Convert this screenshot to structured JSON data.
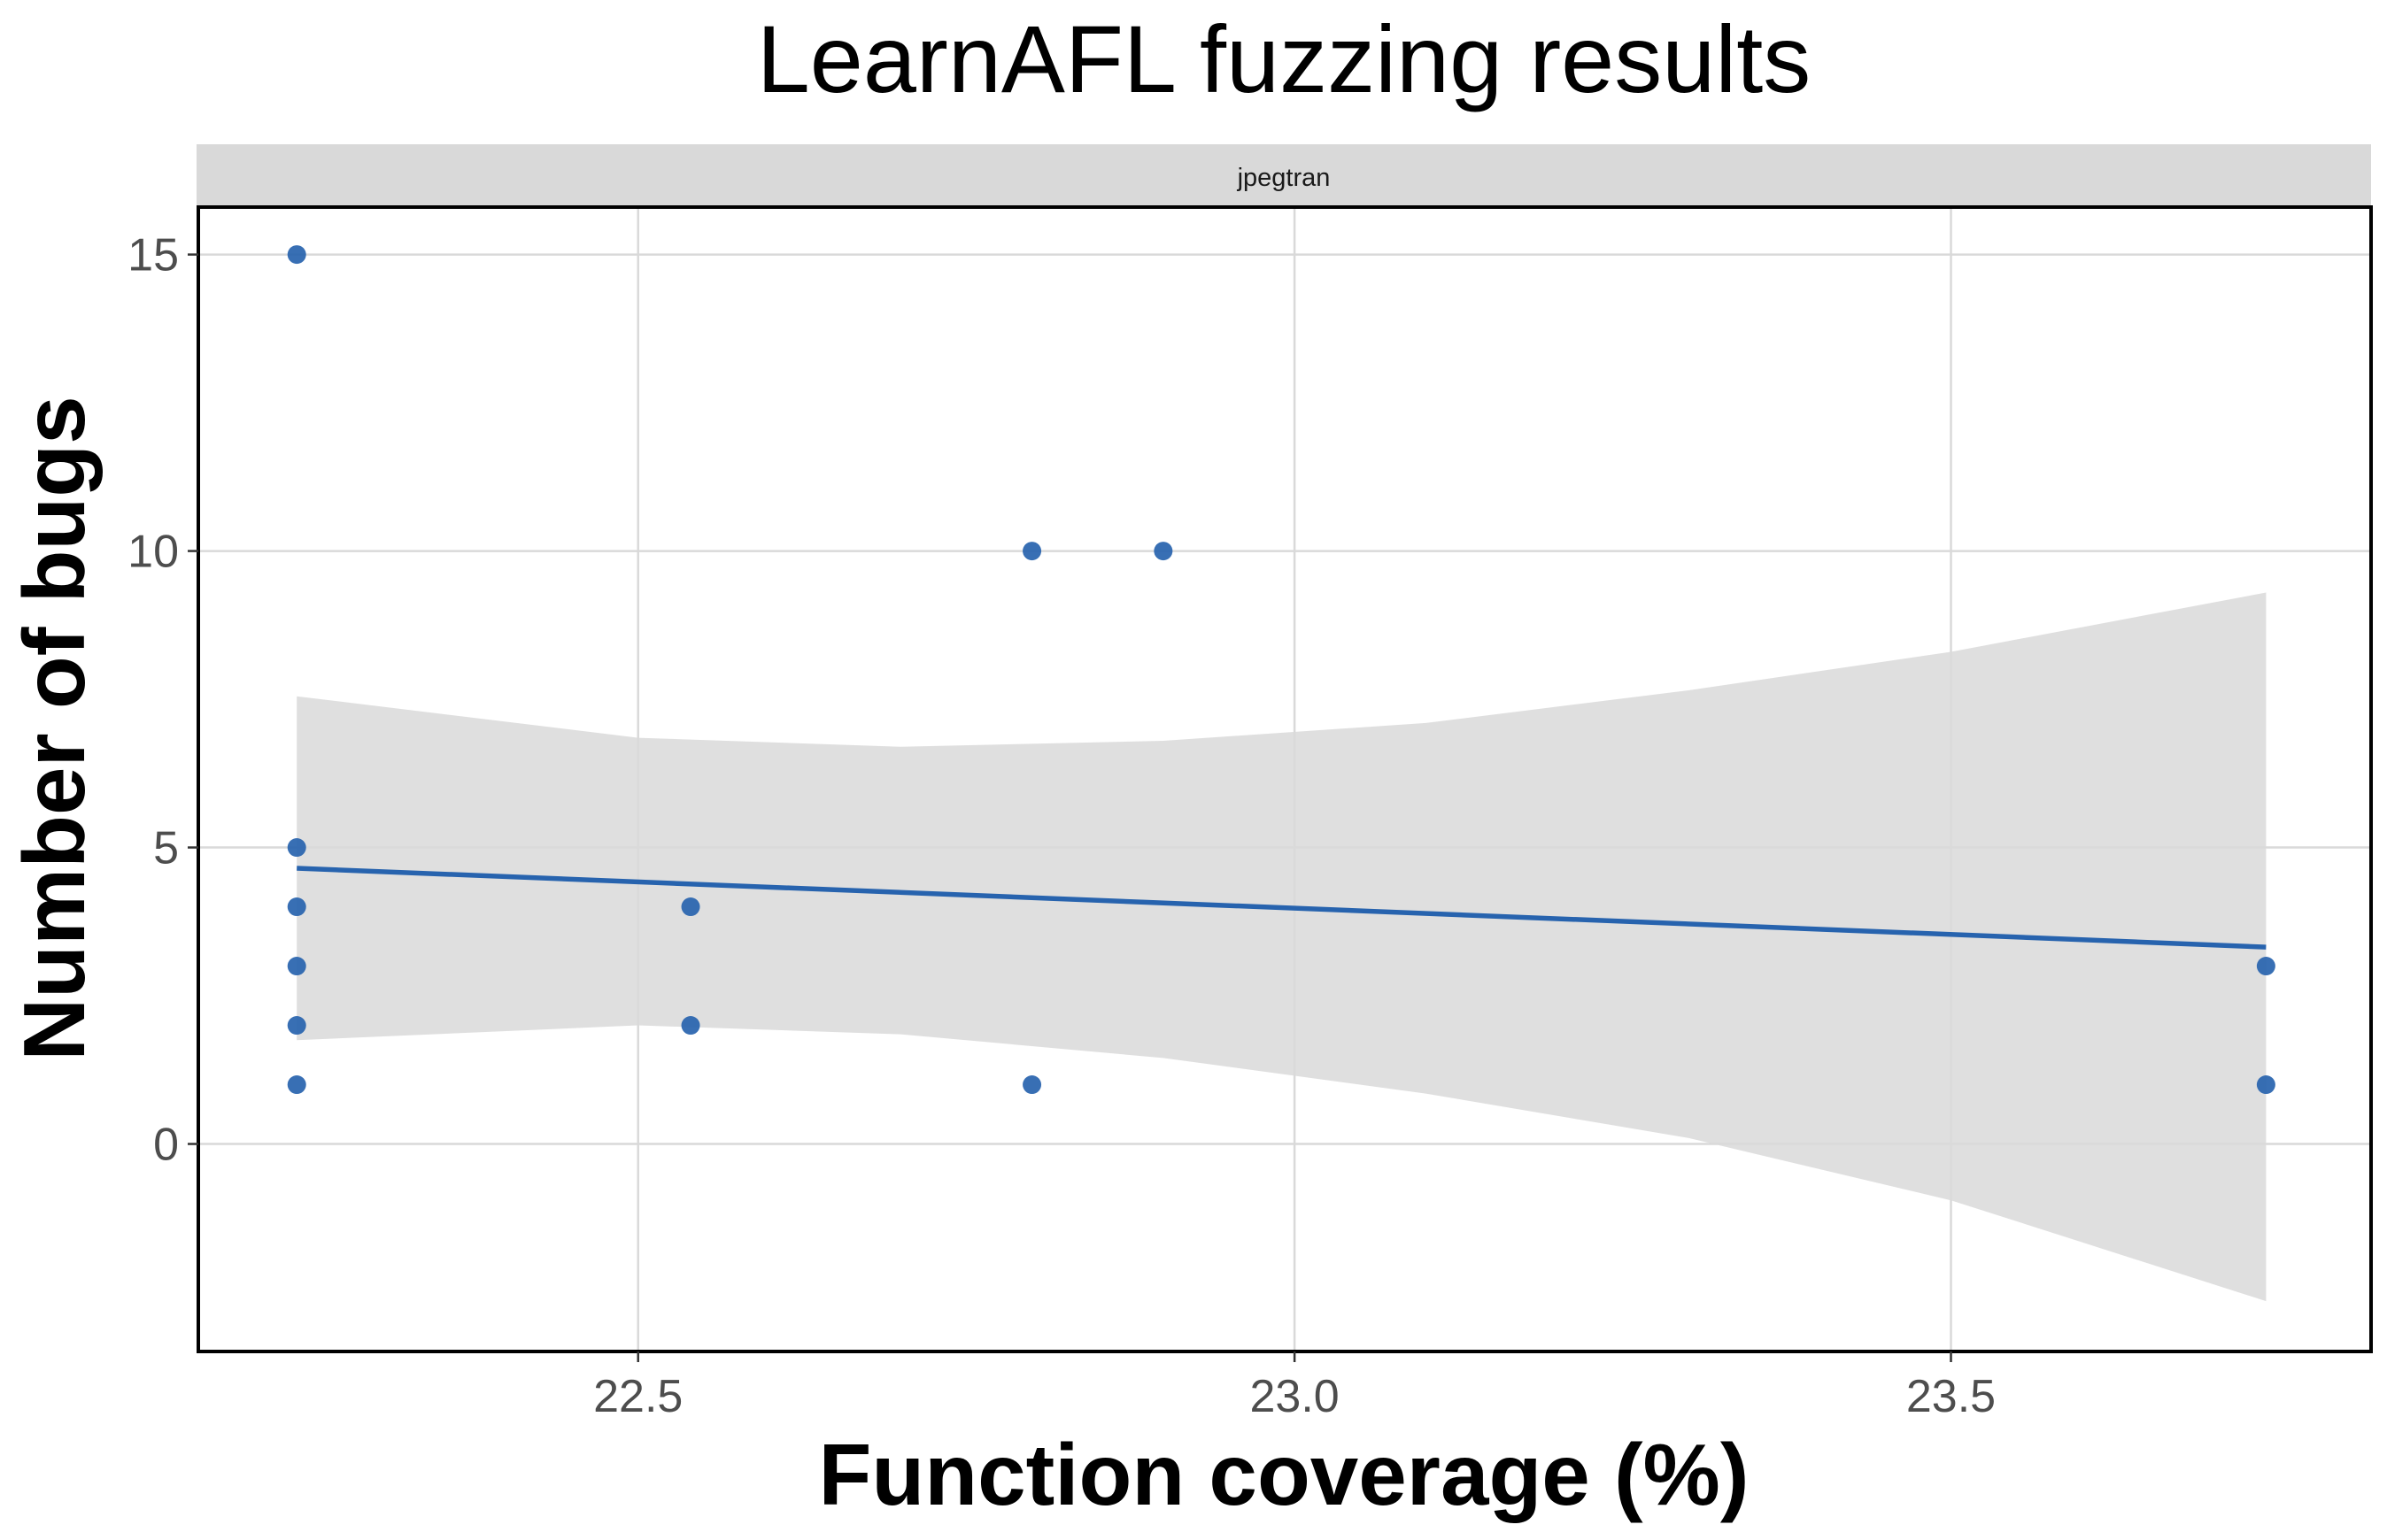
{
  "chart_data": {
    "type": "scatter",
    "title": "LearnAFL fuzzing results",
    "facet_label": "jpegtran",
    "xlabel": "Function coverage (%)",
    "ylabel": "Number of bugs",
    "xlim": [
      22.165,
      23.82
    ],
    "ylim": [
      -3.5,
      15.8
    ],
    "x_ticks": [
      22.5,
      23.0,
      23.5
    ],
    "x_tick_labels": [
      "22.5",
      "23.0",
      "23.5"
    ],
    "y_ticks": [
      0,
      5,
      10,
      15
    ],
    "y_tick_labels": [
      "0",
      "5",
      "10",
      "15"
    ],
    "grid": true,
    "series": [
      {
        "points": [
          {
            "x": 22.24,
            "y": 15
          },
          {
            "x": 22.24,
            "y": 5
          },
          {
            "x": 22.24,
            "y": 4
          },
          {
            "x": 22.24,
            "y": 3
          },
          {
            "x": 22.24,
            "y": 2
          },
          {
            "x": 22.24,
            "y": 1
          },
          {
            "x": 22.54,
            "y": 4
          },
          {
            "x": 22.54,
            "y": 2
          },
          {
            "x": 22.8,
            "y": 10
          },
          {
            "x": 22.8,
            "y": 1
          },
          {
            "x": 22.9,
            "y": 10
          },
          {
            "x": 23.74,
            "y": 3
          },
          {
            "x": 23.74,
            "y": 1
          }
        ]
      }
    ],
    "trend_line": {
      "method": "linear",
      "points": [
        {
          "x": 22.24,
          "y": 4.65
        },
        {
          "x": 23.74,
          "y": 3.32
        }
      ]
    },
    "confidence_band": {
      "x": [
        22.24,
        22.5,
        22.7,
        22.9,
        23.1,
        23.3,
        23.5,
        23.74
      ],
      "upper": [
        7.55,
        6.85,
        6.7,
        6.8,
        7.1,
        7.65,
        8.3,
        9.3
      ],
      "lower": [
        1.75,
        2.0,
        1.85,
        1.45,
        0.85,
        0.1,
        -0.95,
        -2.65
      ]
    },
    "colors": {
      "point": "#2763ae",
      "trend_line": "#2763ae",
      "band": "#d9d9d9",
      "grid": "#d9d9d9",
      "strip": "#d9d9d9",
      "panel_border": "#000000",
      "tick_label": "#4d4d4d",
      "axis_title": "#000000"
    }
  }
}
